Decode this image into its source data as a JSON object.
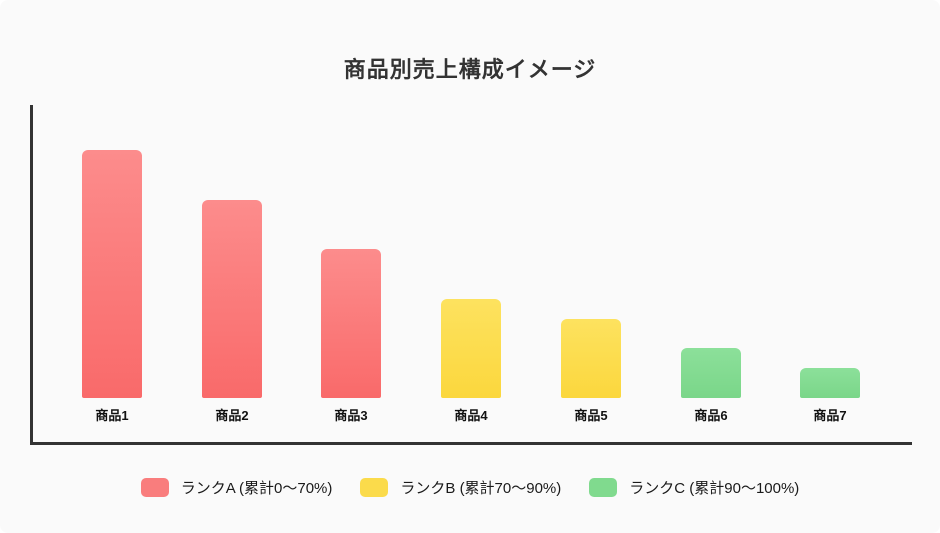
{
  "title": "商品別売上構成イメージ",
  "chart_data": {
    "type": "bar",
    "title": "商品別売上構成イメージ",
    "categories": [
      "商品1",
      "商品2",
      "商品3",
      "商品4",
      "商品5",
      "商品6",
      "商品7"
    ],
    "values": [
      25,
      20,
      15,
      10,
      8,
      5,
      3
    ],
    "ranks": [
      "A",
      "A",
      "A",
      "B",
      "B",
      "C",
      "C"
    ],
    "xlabel": "",
    "ylabel": "",
    "ylim": [
      0,
      26
    ],
    "grid": false,
    "legend_position": "bottom",
    "legend_entries": [
      "ランクA (累計0〜70%)",
      "ランクB (累計70〜90%)",
      "ランクC (累計90〜100%)"
    ]
  },
  "colors": {
    "background": "#fafafa",
    "axis": "#333333",
    "title_text": "#333333",
    "category_label_text": "#111111",
    "rank_A": {
      "legend": "#f97d7d",
      "bar_top": "#fc8c8c",
      "bar_bottom": "#f96a6a"
    },
    "rank_B": {
      "legend": "#fbdb4b",
      "bar_top": "#fde25f",
      "bar_bottom": "#fbd73d"
    },
    "rank_C": {
      "legend": "#80da8e",
      "bar_top": "#8ce09a",
      "bar_bottom": "#7ad689"
    }
  },
  "legend": {
    "items": [
      {
        "rank": "A",
        "label": "ランクA (累計0〜70%)"
      },
      {
        "rank": "B",
        "label": "ランクB (累計70〜90%)"
      },
      {
        "rank": "C",
        "label": "ランクC (累計90〜100%)"
      }
    ]
  }
}
